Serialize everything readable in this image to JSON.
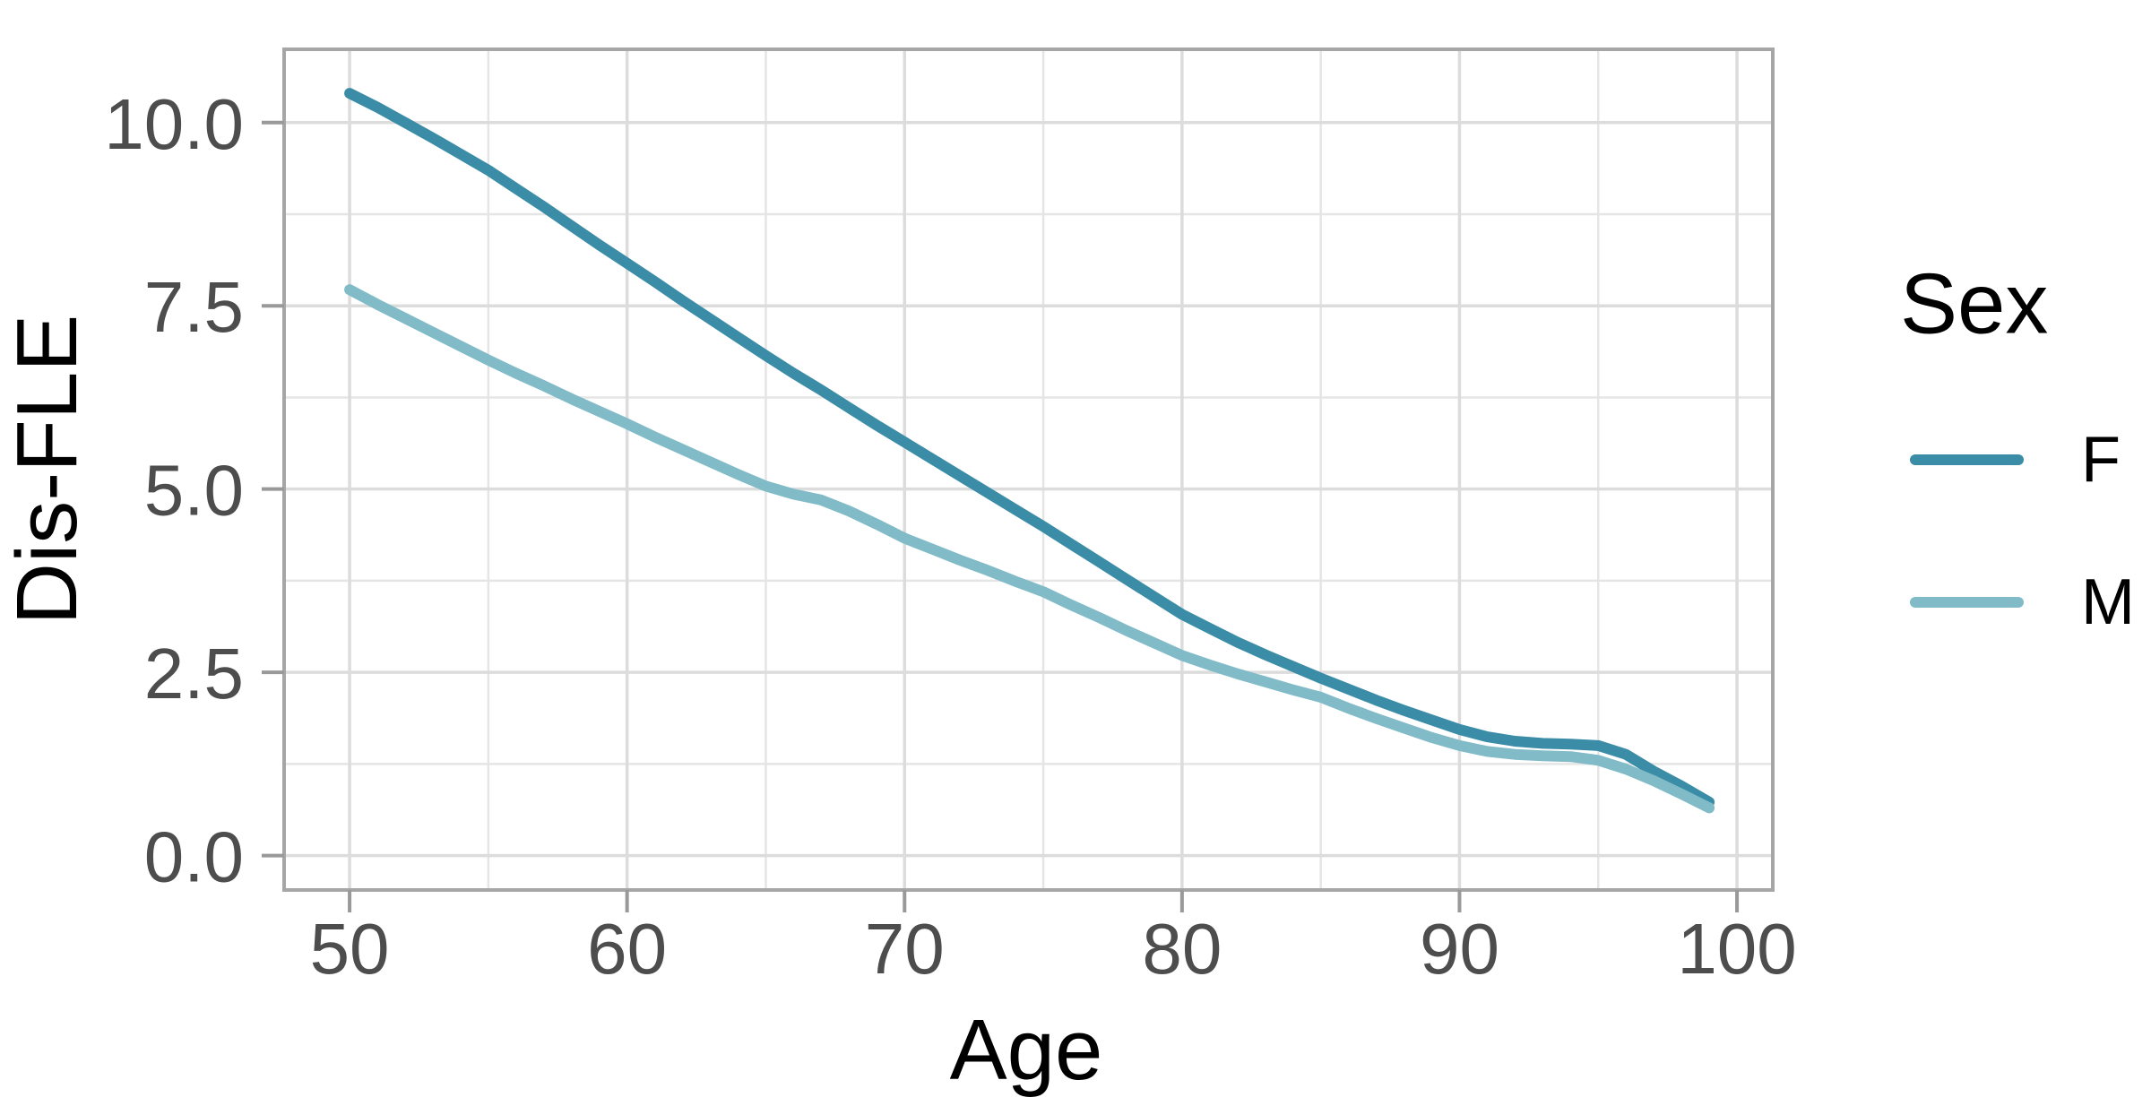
{
  "chart_data": {
    "type": "line",
    "title": "",
    "xlabel": "Age",
    "ylabel": "Dis-FLE",
    "x": [
      50,
      51,
      52,
      53,
      54,
      55,
      56,
      57,
      58,
      59,
      60,
      61,
      62,
      63,
      64,
      65,
      66,
      67,
      68,
      69,
      70,
      71,
      72,
      73,
      74,
      75,
      76,
      77,
      78,
      79,
      80,
      81,
      82,
      83,
      84,
      85,
      86,
      87,
      88,
      89,
      90,
      91,
      92,
      93,
      94,
      95,
      96,
      97,
      98,
      99
    ],
    "series": [
      {
        "name": "F",
        "color": "#3B8CA7",
        "values": [
          10.4,
          10.21,
          10.0,
          9.79,
          9.57,
          9.35,
          9.1,
          8.85,
          8.59,
          8.33,
          8.08,
          7.83,
          7.57,
          7.32,
          7.07,
          6.82,
          6.58,
          6.35,
          6.11,
          5.87,
          5.64,
          5.41,
          5.18,
          4.95,
          4.72,
          4.49,
          4.25,
          4.01,
          3.77,
          3.53,
          3.29,
          3.1,
          2.91,
          2.74,
          2.58,
          2.42,
          2.27,
          2.12,
          1.98,
          1.85,
          1.72,
          1.62,
          1.56,
          1.53,
          1.52,
          1.5,
          1.38,
          1.15,
          0.95,
          0.73
        ]
      },
      {
        "name": "M",
        "color": "#81BBC8",
        "values": [
          7.72,
          7.52,
          7.33,
          7.14,
          6.95,
          6.76,
          6.58,
          6.41,
          6.23,
          6.06,
          5.89,
          5.71,
          5.54,
          5.37,
          5.2,
          5.04,
          4.93,
          4.85,
          4.7,
          4.52,
          4.33,
          4.18,
          4.03,
          3.89,
          3.74,
          3.6,
          3.42,
          3.25,
          3.07,
          2.9,
          2.73,
          2.6,
          2.48,
          2.37,
          2.26,
          2.16,
          2.01,
          1.87,
          1.74,
          1.61,
          1.5,
          1.42,
          1.38,
          1.36,
          1.35,
          1.3,
          1.18,
          1.02,
          0.84,
          0.65
        ]
      }
    ],
    "legend": {
      "title": "Sex",
      "position": "right",
      "entries": [
        "F",
        "M"
      ]
    },
    "xlim": [
      47.64,
      101.29
    ],
    "ylim": [
      -0.47,
      11.0
    ],
    "x_ticks": [
      50,
      60,
      70,
      80,
      90,
      100
    ],
    "x_tick_labels": [
      "50",
      "60",
      "70",
      "80",
      "90",
      "100"
    ],
    "x_minor_ticks": [
      55,
      65,
      75,
      85,
      95
    ],
    "y_ticks": [
      0,
      2.5,
      5,
      7.5,
      10
    ],
    "y_tick_labels": [
      "0.0",
      "2.5",
      "5.0",
      "7.5",
      "10.0"
    ],
    "y_minor_ticks": [
      1.25,
      3.75,
      6.25,
      8.75
    ],
    "grid": "major and minor gridlines on"
  },
  "style": {
    "background_color": "#FFFFFF",
    "panel_border_color": "#A6A6A6",
    "grid_major_color": "#DCDCDC",
    "grid_minor_color": "#E5E5E5",
    "tick_mark_color": "#999999",
    "tick_label_color": "#4D4D4D",
    "title_color": "#000000"
  }
}
